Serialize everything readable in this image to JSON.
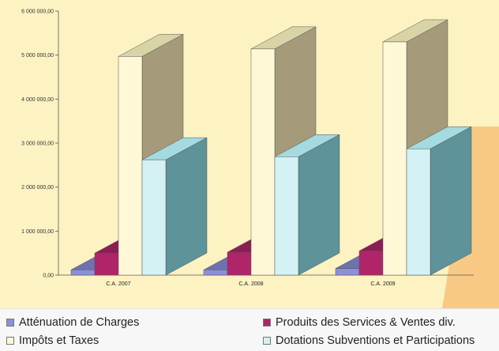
{
  "chart_data": {
    "type": "bar",
    "style": "3d-clustered",
    "categories": [
      "C.A. 2007",
      "C.A. 2008",
      "C.A. 2009"
    ],
    "series": [
      {
        "name": "Atténuation de Charges",
        "values": [
          120000,
          120000,
          150000
        ],
        "color": "#8c90d8"
      },
      {
        "name": "Produits des Services & Ventes div.",
        "values": [
          500000,
          520000,
          550000
        ],
        "color": "#b0246a"
      },
      {
        "name": "Impôts et Taxes",
        "values": [
          4970000,
          5140000,
          5300000
        ],
        "color": "#fff8d6"
      },
      {
        "name": "Dotations Subventions et Participations",
        "values": [
          2620000,
          2690000,
          2870000
        ],
        "color": "#d4f1f4"
      }
    ],
    "yticks": [
      "0,00",
      "1 000 000,00",
      "2 000 000,00",
      "3 000 000,00",
      "4 000 000,00",
      "5 000 000,00",
      "6 000 000,00"
    ],
    "ylim": [
      0,
      6000000
    ],
    "legend_position": "bottom",
    "colors": {
      "background": "#fdf2c2",
      "decor_orange": "#f7c985",
      "yellow_top": "#d9d4a6",
      "yellow_side": "#a59b7a",
      "cyan_top": "#a5dae0",
      "cyan_side": "#5d9399",
      "magenta_top": "#8c1d56",
      "lavender_top": "#6f72b0",
      "axis": "#555555"
    }
  }
}
